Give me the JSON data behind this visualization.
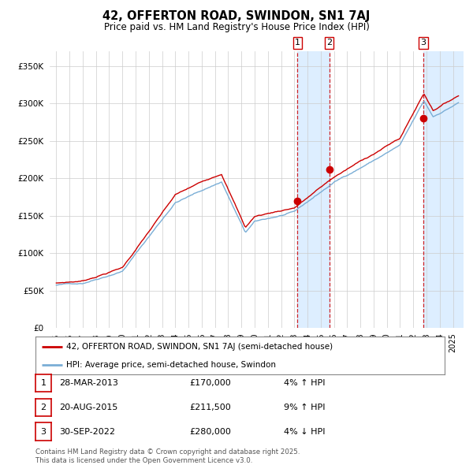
{
  "title_line1": "42, OFFERTON ROAD, SWINDON, SN1 7AJ",
  "title_line2": "Price paid vs. HM Land Registry's House Price Index (HPI)",
  "hpi_label": "HPI: Average price, semi-detached house, Swindon",
  "property_label": "42, OFFERTON ROAD, SWINDON, SN1 7AJ (semi-detached house)",
  "sale_labels": [
    "1",
    "2",
    "3"
  ],
  "sale_notes": [
    "28-MAR-2013",
    "20-AUG-2015",
    "30-SEP-2022"
  ],
  "sale_amounts": [
    "£170,000",
    "£211,500",
    "£280,000"
  ],
  "sale_hpi_pcts": [
    "4% ↑ HPI",
    "9% ↑ HPI",
    "4% ↓ HPI"
  ],
  "sale_prices": [
    170000,
    211500,
    280000
  ],
  "sale_years": [
    2013.24,
    2015.64,
    2022.75
  ],
  "footnote_line1": "Contains HM Land Registry data © Crown copyright and database right 2025.",
  "footnote_line2": "This data is licensed under the Open Government Licence v3.0.",
  "hpi_color": "#7aaed6",
  "property_color": "#cc0000",
  "background_color": "#ffffff",
  "grid_color": "#cccccc",
  "sale_band_color": "#ddeeff",
  "ylim": [
    0,
    370000
  ],
  "yticks": [
    0,
    50000,
    100000,
    150000,
    200000,
    250000,
    300000,
    350000
  ],
  "xlim_start": 1994.5,
  "xlim_end": 2025.8
}
